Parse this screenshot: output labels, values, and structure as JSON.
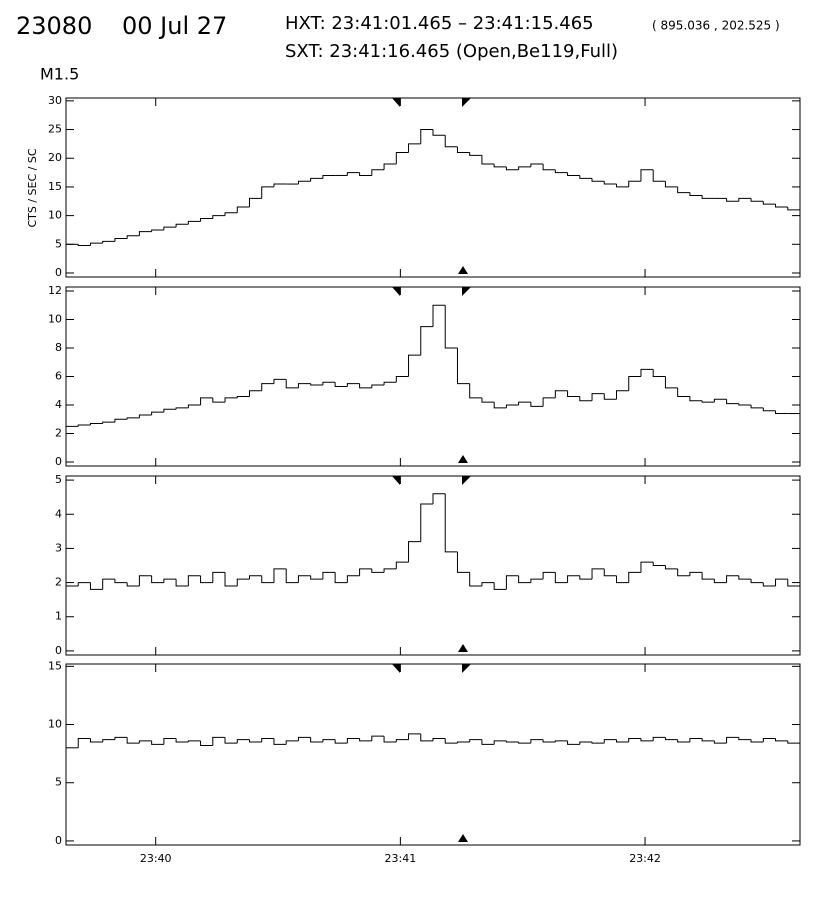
{
  "header": {
    "id": "23080",
    "date": "00 Jul 27",
    "hxt": "HXT: 23:41:01.465 – 23:41:15.465",
    "coords": "( 895.036 , 202.525 )",
    "sxt": "SXT: 23:41:16.465 (Open,Be119,Full)",
    "class": "M1.5"
  },
  "chart_data": [
    {
      "type": "histogram",
      "ylabel": "CTS / SEC / SC",
      "color": "#000000",
      "xlim": [
        85178,
        85358
      ],
      "ylim": [
        -0.7,
        30.5
      ],
      "yticks": [
        0,
        5,
        10,
        15,
        20,
        25,
        30
      ],
      "bins": [
        85178,
        85181,
        85184,
        85187,
        85190,
        85193,
        85196,
        85199,
        85202,
        85205,
        85208,
        85211,
        85214,
        85217,
        85220,
        85223,
        85226,
        85229,
        85232,
        85235,
        85238,
        85241,
        85244,
        85247,
        85250,
        85253,
        85256,
        85259,
        85262,
        85265,
        85268,
        85271,
        85274,
        85277,
        85280,
        85283,
        85286,
        85289,
        85292,
        85295,
        85298,
        85301,
        85304,
        85307,
        85310,
        85313,
        85316,
        85319,
        85322,
        85325,
        85328,
        85331,
        85334,
        85337,
        85340,
        85343,
        85346,
        85349,
        85352,
        85355,
        85358
      ],
      "values": [
        5,
        4.8,
        5.2,
        5.5,
        6,
        6.5,
        7.2,
        7.5,
        8,
        8.5,
        9,
        9.5,
        10,
        10.5,
        11.5,
        13,
        15,
        15.5,
        15.5,
        16,
        16.5,
        17,
        17,
        17.5,
        17,
        18,
        19,
        21,
        22.5,
        25,
        24,
        22,
        21,
        20.5,
        19,
        18.5,
        18,
        18.5,
        19,
        18,
        17.5,
        17,
        16.5,
        16,
        15.5,
        15,
        16,
        18,
        16,
        15,
        14,
        13.5,
        13,
        13,
        12.5,
        13,
        12.5,
        12,
        11.5,
        11
      ]
    },
    {
      "type": "histogram",
      "color": "#000000",
      "xlim": [
        85178,
        85358
      ],
      "ylim": [
        -0.28,
        12.28
      ],
      "yticks": [
        0,
        2,
        4,
        6,
        8,
        10,
        12
      ],
      "bins": [
        85178,
        85181,
        85184,
        85187,
        85190,
        85193,
        85196,
        85199,
        85202,
        85205,
        85208,
        85211,
        85214,
        85217,
        85220,
        85223,
        85226,
        85229,
        85232,
        85235,
        85238,
        85241,
        85244,
        85247,
        85250,
        85253,
        85256,
        85259,
        85262,
        85265,
        85268,
        85271,
        85274,
        85277,
        85280,
        85283,
        85286,
        85289,
        85292,
        85295,
        85298,
        85301,
        85304,
        85307,
        85310,
        85313,
        85316,
        85319,
        85322,
        85325,
        85328,
        85331,
        85334,
        85337,
        85340,
        85343,
        85346,
        85349,
        85352,
        85355,
        85358
      ],
      "values": [
        2.5,
        2.6,
        2.7,
        2.8,
        3,
        3.1,
        3.3,
        3.5,
        3.7,
        3.8,
        4,
        4.5,
        4.2,
        4.5,
        4.6,
        5,
        5.5,
        5.8,
        5.2,
        5.5,
        5.4,
        5.6,
        5.3,
        5.5,
        5.2,
        5.4,
        5.6,
        6,
        7.5,
        9.5,
        11,
        8,
        5.5,
        4.5,
        4.2,
        3.8,
        4,
        4.2,
        3.9,
        4.5,
        5,
        4.6,
        4.3,
        4.8,
        4.4,
        5,
        6,
        6.5,
        6,
        5.2,
        4.6,
        4.3,
        4.2,
        4.4,
        4.1,
        4,
        3.8,
        3.6,
        3.4,
        3.4
      ]
    },
    {
      "type": "histogram",
      "color": "#000000",
      "xlim": [
        85178,
        85358
      ],
      "ylim": [
        -0.12,
        5.12
      ],
      "yticks": [
        0,
        1,
        2,
        3,
        4,
        5
      ],
      "bins": [
        85178,
        85181,
        85184,
        85187,
        85190,
        85193,
        85196,
        85199,
        85202,
        85205,
        85208,
        85211,
        85214,
        85217,
        85220,
        85223,
        85226,
        85229,
        85232,
        85235,
        85238,
        85241,
        85244,
        85247,
        85250,
        85253,
        85256,
        85259,
        85262,
        85265,
        85268,
        85271,
        85274,
        85277,
        85280,
        85283,
        85286,
        85289,
        85292,
        85295,
        85298,
        85301,
        85304,
        85307,
        85310,
        85313,
        85316,
        85319,
        85322,
        85325,
        85328,
        85331,
        85334,
        85337,
        85340,
        85343,
        85346,
        85349,
        85352,
        85355,
        85358
      ],
      "values": [
        1.9,
        2,
        1.8,
        2.1,
        2,
        1.9,
        2.2,
        2,
        2.1,
        1.9,
        2.2,
        2,
        2.3,
        1.9,
        2.1,
        2.2,
        2,
        2.4,
        2,
        2.2,
        2.1,
        2.3,
        2,
        2.2,
        2.4,
        2.3,
        2.4,
        2.6,
        3.2,
        4.3,
        4.6,
        2.9,
        2.3,
        1.9,
        2,
        1.8,
        2.2,
        2,
        2.1,
        2.3,
        2,
        2.2,
        2.1,
        2.4,
        2.2,
        2,
        2.3,
        2.6,
        2.5,
        2.4,
        2.2,
        2.3,
        2.1,
        2,
        2.2,
        2.1,
        2,
        1.9,
        2.1,
        1.9
      ]
    },
    {
      "type": "histogram",
      "color": "#000000",
      "xlim": [
        85178,
        85358
      ],
      "ylim": [
        -0.35,
        15.2
      ],
      "yticks": [
        0,
        5,
        10,
        15
      ],
      "xticks": [
        {
          "value": 85200,
          "label": "23:40"
        },
        {
          "value": 85260,
          "label": "23:41"
        },
        {
          "value": 85320,
          "label": "23:42"
        }
      ],
      "bins": [
        85178,
        85181,
        85184,
        85187,
        85190,
        85193,
        85196,
        85199,
        85202,
        85205,
        85208,
        85211,
        85214,
        85217,
        85220,
        85223,
        85226,
        85229,
        85232,
        85235,
        85238,
        85241,
        85244,
        85247,
        85250,
        85253,
        85256,
        85259,
        85262,
        85265,
        85268,
        85271,
        85274,
        85277,
        85280,
        85283,
        85286,
        85289,
        85292,
        85295,
        85298,
        85301,
        85304,
        85307,
        85310,
        85313,
        85316,
        85319,
        85322,
        85325,
        85328,
        85331,
        85334,
        85337,
        85340,
        85343,
        85346,
        85349,
        85352,
        85355,
        85358
      ],
      "values": [
        8,
        8.8,
        8.5,
        8.7,
        8.9,
        8.4,
        8.6,
        8.3,
        8.8,
        8.5,
        8.6,
        8.2,
        8.9,
        8.4,
        8.7,
        8.5,
        8.8,
        8.3,
        8.6,
        8.9,
        8.5,
        8.7,
        8.4,
        8.8,
        8.6,
        9,
        8.5,
        8.7,
        9.2,
        8.6,
        8.8,
        8.4,
        8.5,
        8.7,
        8.3,
        8.6,
        8.5,
        8.4,
        8.7,
        8.5,
        8.6,
        8.3,
        8.5,
        8.4,
        8.7,
        8.5,
        8.8,
        8.6,
        8.9,
        8.7,
        8.5,
        8.8,
        8.6,
        8.4,
        8.9,
        8.7,
        8.5,
        8.8,
        8.6,
        8.4
      ]
    }
  ]
}
